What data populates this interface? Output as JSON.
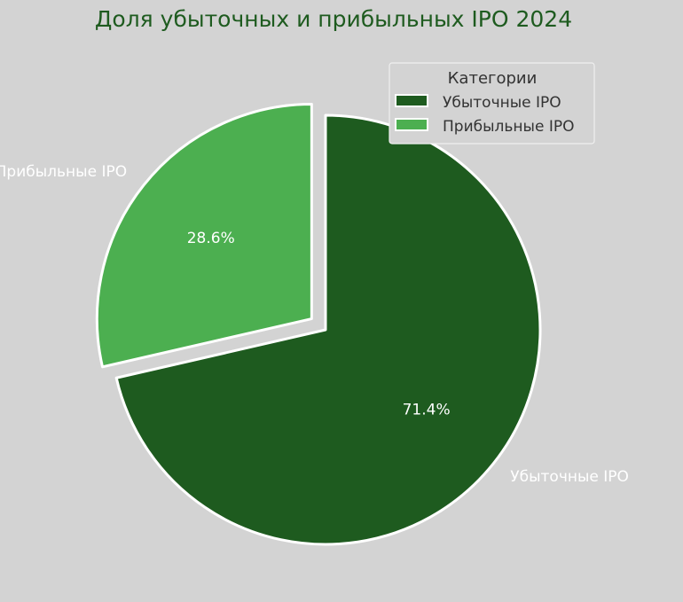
{
  "chart_data": {
    "type": "pie",
    "title": "Доля убыточных и прибыльных IPO 2024",
    "slices": [
      {
        "label": "Убыточные IPO",
        "value": 71.4,
        "pct_label": "71.4%",
        "color": "#1e5b1f",
        "explode": false
      },
      {
        "label": "Прибыльные IPO",
        "value": 28.6,
        "pct_label": "28.6%",
        "color": "#4caf50",
        "explode": true
      }
    ],
    "legend": {
      "title": "Категории",
      "placement": "top-right",
      "entries": [
        "Убыточные IPO",
        "Прибыльные IPO"
      ]
    },
    "start_angle_deg": 90,
    "direction": "clockwise"
  },
  "colors": {
    "background": "#d3d3d3",
    "title": "#1e5b1f",
    "slice_edge": "#ffffff",
    "slice_text": "#ffffff",
    "legend_text": "#333333"
  }
}
